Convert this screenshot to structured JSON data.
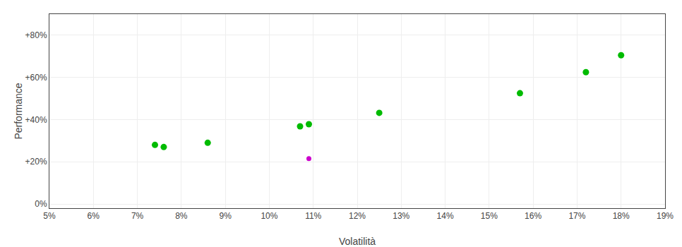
{
  "chart_data": {
    "type": "scatter",
    "xlabel": "Volatilità",
    "ylabel": "Performance",
    "xlim": [
      0.05,
      0.19
    ],
    "ylim": [
      -0.02,
      0.9
    ],
    "xticks": [
      {
        "value": 0.05,
        "label": "5%"
      },
      {
        "value": 0.06,
        "label": "6%"
      },
      {
        "value": 0.07,
        "label": "7%"
      },
      {
        "value": 0.08,
        "label": "8%"
      },
      {
        "value": 0.09,
        "label": "9%"
      },
      {
        "value": 0.1,
        "label": "10%"
      },
      {
        "value": 0.11,
        "label": "11%"
      },
      {
        "value": 0.12,
        "label": "12%"
      },
      {
        "value": 0.13,
        "label": "13%"
      },
      {
        "value": 0.14,
        "label": "14%"
      },
      {
        "value": 0.15,
        "label": "15%"
      },
      {
        "value": 0.16,
        "label": "16%"
      },
      {
        "value": 0.17,
        "label": "17%"
      },
      {
        "value": 0.18,
        "label": "18%"
      },
      {
        "value": 0.19,
        "label": "19%"
      }
    ],
    "yticks": [
      {
        "value": 0.0,
        "label": "0%"
      },
      {
        "value": 0.2,
        "label": "+20%"
      },
      {
        "value": 0.4,
        "label": "+40%"
      },
      {
        "value": 0.6,
        "label": "+60%"
      },
      {
        "value": 0.8,
        "label": "+80%"
      }
    ],
    "grid": true,
    "series": [
      {
        "color": "#00bb00",
        "x": [
          0.074,
          0.076,
          0.086,
          0.107,
          0.109,
          0.125,
          0.157,
          0.172,
          0.18
        ],
        "values": [
          0.28,
          0.27,
          0.29,
          0.368,
          0.378,
          0.432,
          0.525,
          0.625,
          0.705
        ]
      },
      {
        "color": "#cc00cc",
        "x": [
          0.109
        ],
        "values": [
          0.215
        ]
      }
    ]
  }
}
